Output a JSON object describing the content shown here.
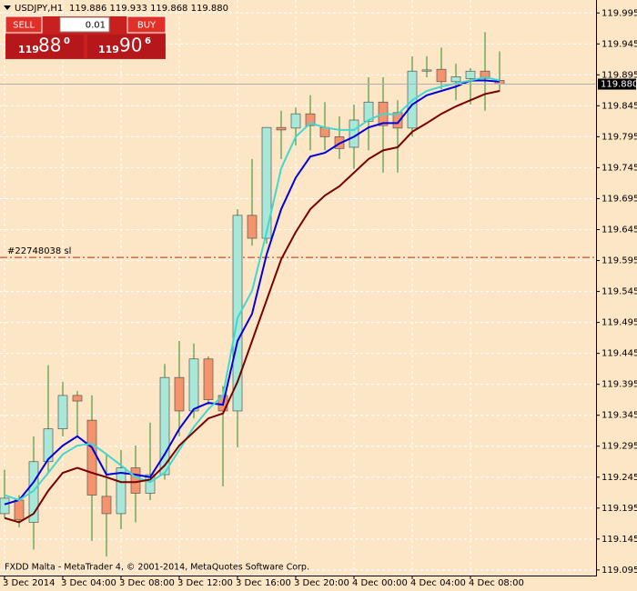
{
  "chart_data": {
    "type": "candlestick",
    "symbol": "USDJPY,H1",
    "quote_line": "119.886 119.933 119.868 119.880",
    "categories": [
      "3 Dec 2014",
      null,
      null,
      null,
      "3 Dec 04:00",
      null,
      null,
      null,
      "3 Dec 08:00",
      null,
      null,
      null,
      "3 Dec 12:00",
      null,
      null,
      null,
      "3 Dec 16:00",
      null,
      null,
      null,
      "3 Dec 20:00",
      null,
      null,
      null,
      "4 Dec 00:00",
      null,
      null,
      null,
      "4 Dec 04:00",
      null,
      null,
      null,
      "4 Dec 08:00",
      null,
      null
    ],
    "open": [
      119.186,
      119.208,
      119.172,
      119.27,
      119.323,
      119.377,
      119.337,
      119.214,
      119.186,
      119.26,
      119.219,
      119.249,
      119.406,
      119.352,
      119.436,
      119.377,
      119.352,
      119.668,
      119.631,
      119.81,
      119.809,
      119.832,
      119.81,
      119.795,
      119.778,
      119.82,
      119.851,
      119.834,
      119.809,
      119.901,
      119.904,
      119.884,
      119.889,
      119.901,
      119.886
    ],
    "high": [
      119.257,
      119.216,
      119.311,
      119.426,
      119.399,
      119.384,
      119.377,
      119.282,
      119.289,
      119.296,
      119.333,
      119.428,
      119.465,
      119.461,
      119.44,
      119.392,
      119.678,
      119.759,
      119.81,
      119.837,
      119.842,
      119.862,
      119.851,
      119.828,
      119.847,
      119.891,
      119.891,
      119.854,
      119.925,
      119.925,
      119.939,
      119.913,
      119.906,
      119.964,
      119.933
    ],
    "low": [
      119.179,
      119.164,
      119.128,
      119.252,
      119.311,
      119.311,
      119.142,
      119.117,
      119.161,
      119.172,
      119.208,
      119.241,
      119.311,
      119.34,
      119.362,
      119.23,
      119.293,
      119.619,
      119.622,
      119.759,
      119.781,
      119.773,
      119.773,
      119.759,
      119.743,
      119.773,
      119.737,
      119.737,
      119.795,
      119.891,
      119.872,
      119.854,
      119.847,
      119.837,
      119.868
    ],
    "close": [
      119.211,
      119.176,
      119.27,
      119.323,
      119.377,
      119.368,
      119.216,
      119.186,
      119.26,
      119.219,
      119.249,
      119.406,
      119.352,
      119.436,
      119.37,
      119.352,
      119.668,
      119.631,
      119.81,
      119.806,
      119.832,
      119.813,
      119.795,
      119.776,
      119.822,
      119.851,
      119.813,
      119.809,
      119.901,
      119.903,
      119.884,
      119.892,
      119.901,
      119.889,
      119.88
    ],
    "bull_color": "#a8e8d8",
    "bear_color": "#f5946c",
    "candle_border": "#555555",
    "moving_averages": [
      {
        "color": "#0000dd",
        "values": [
          119.201,
          119.208,
          119.237,
          119.274,
          119.296,
          119.311,
          119.293,
          119.249,
          119.252,
          119.249,
          119.245,
          119.282,
          119.323,
          119.355,
          119.365,
          119.362,
          119.465,
          119.509,
          119.605,
          119.678,
          119.729,
          119.763,
          119.769,
          119.784,
          119.795,
          119.81,
          119.817,
          119.817,
          119.847,
          119.862,
          119.869,
          119.876,
          119.886,
          119.886,
          119.884
        ]
      },
      {
        "color": "#40d8d0",
        "values": [
          119.216,
          119.208,
          119.223,
          119.252,
          119.282,
          119.296,
          119.299,
          119.282,
          119.264,
          119.245,
          119.237,
          119.252,
          119.289,
          119.326,
          119.355,
          119.377,
          119.502,
          119.546,
          119.641,
          119.744,
          119.795,
          119.817,
          119.81,
          119.806,
          119.806,
          119.822,
          119.832,
          119.831,
          119.854,
          119.869,
          119.876,
          119.881,
          119.886,
          119.891,
          119.886
        ]
      },
      {
        "color": "#7a0000",
        "values": [
          119.179,
          119.172,
          119.186,
          119.223,
          119.252,
          119.26,
          119.252,
          119.245,
          119.237,
          119.237,
          119.241,
          119.264,
          119.296,
          119.318,
          119.34,
          119.348,
          119.399,
          119.465,
          119.531,
          119.597,
          119.641,
          119.678,
          119.7,
          119.715,
          119.737,
          119.759,
          119.773,
          119.778,
          119.803,
          119.817,
          119.832,
          119.844,
          119.854,
          119.864,
          119.869
        ]
      }
    ],
    "ylim": [
      119.086,
      120.013
    ],
    "yticks": [
      119.995,
      119.945,
      119.895,
      119.845,
      119.795,
      119.745,
      119.695,
      119.645,
      119.595,
      119.545,
      119.495,
      119.445,
      119.395,
      119.345,
      119.295,
      119.245,
      119.195,
      119.145,
      119.095
    ],
    "grid": true,
    "background": "#fde6c6",
    "current_price": {
      "value": 119.88,
      "label": "119.880"
    },
    "sl_line": {
      "value": 119.6,
      "label": "#22748038 sl"
    },
    "footer": "FXDD Malta - MetaTrader 4, © 2001-2014, MetaQuotes Software Corp."
  },
  "trade_panel": {
    "sell": "SELL",
    "buy": "BUY",
    "lot": "0.01",
    "sell_price": {
      "big_figure": "119",
      "pips": "88",
      "fraction": "0"
    },
    "buy_price": {
      "big_figure": "119",
      "pips": "90",
      "fraction": "6"
    }
  }
}
